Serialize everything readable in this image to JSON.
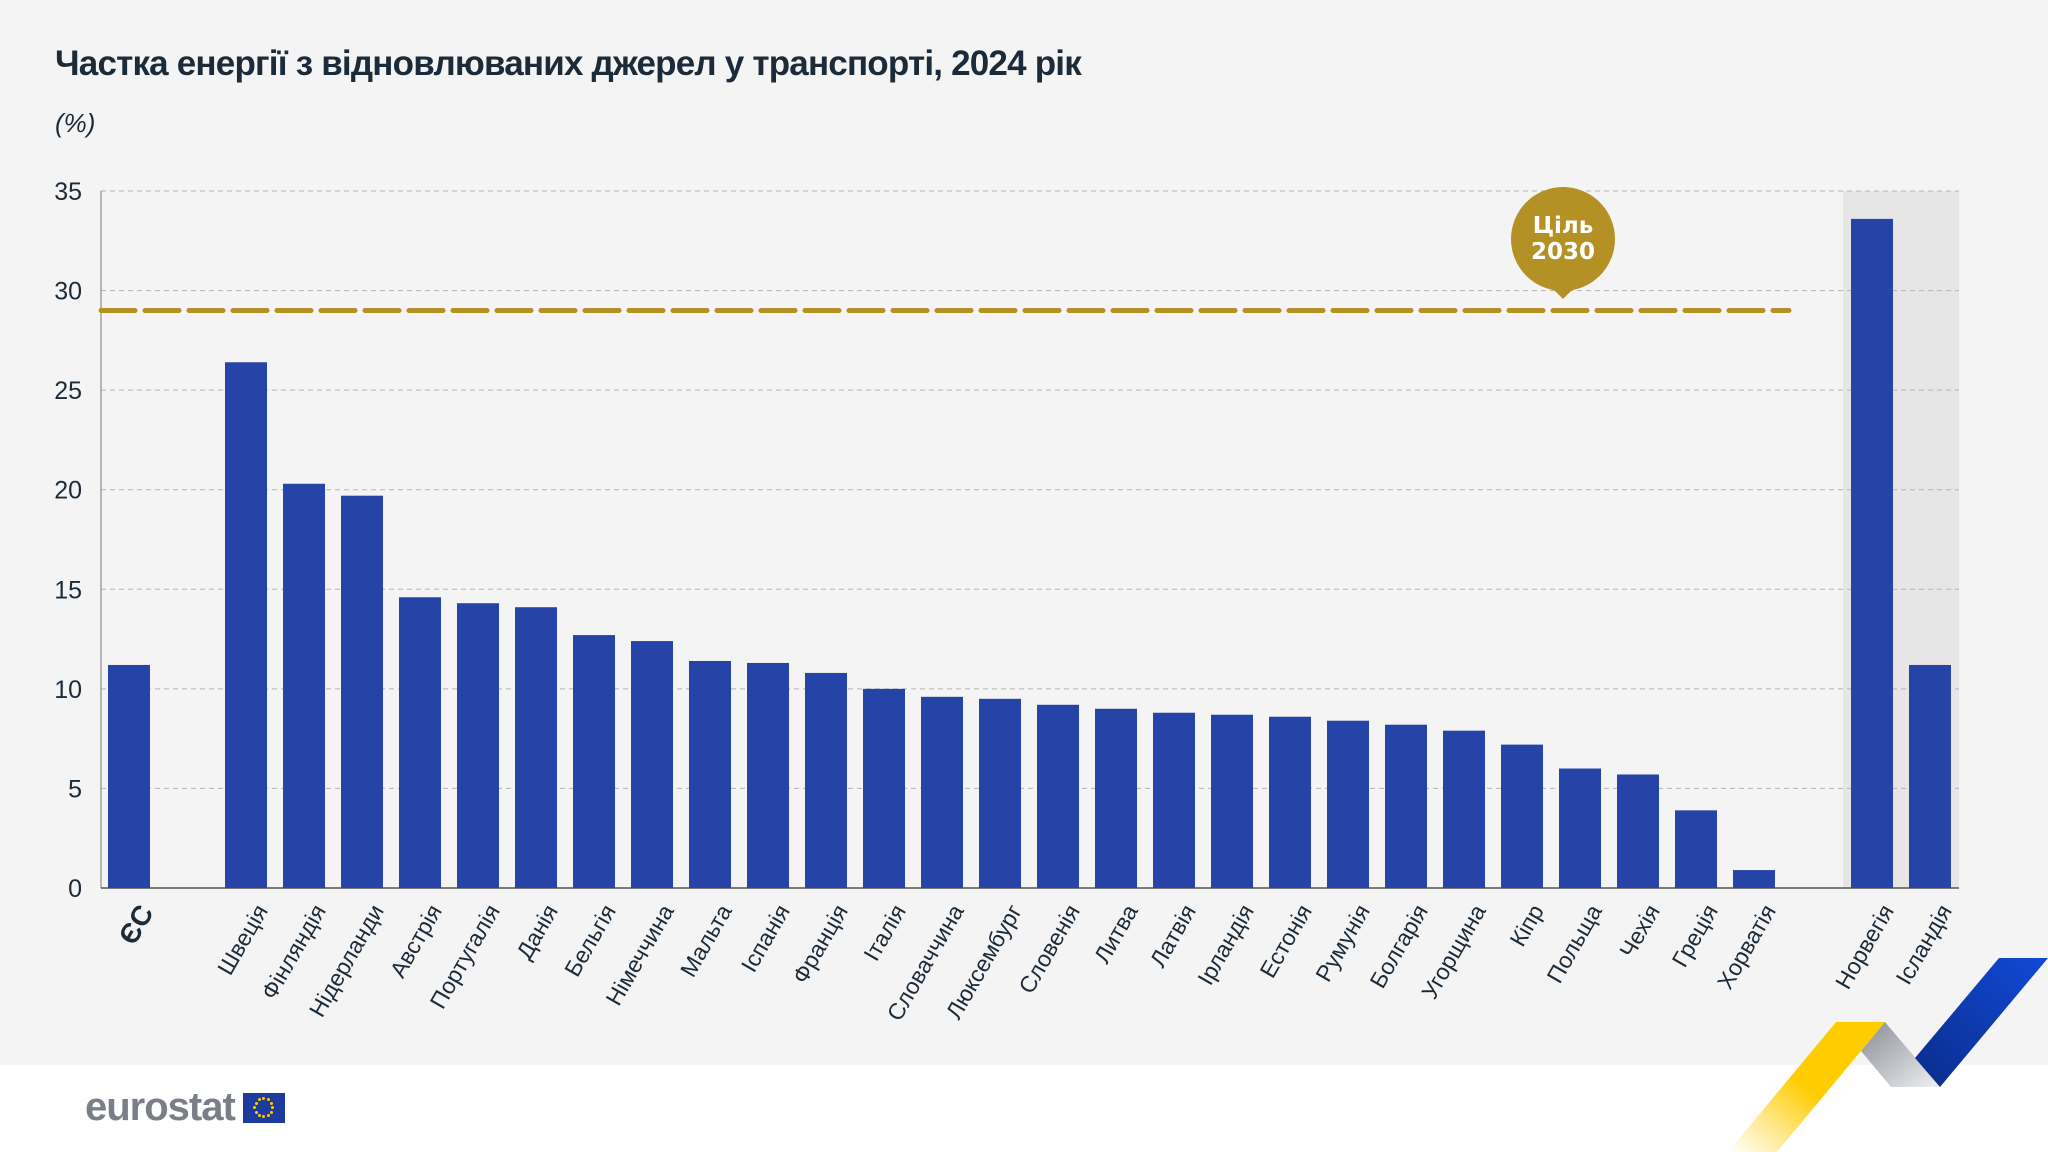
{
  "title": "Частка енергії з відновлюваних джерел у транспорті, 2024 рік",
  "unit": "(%)",
  "logo": "eurostat",
  "colors": {
    "bar": "#2643a7",
    "target": "#b39124",
    "highlight_band": "#e6e6e6",
    "grid": "#b5b5b5",
    "text": "#1c2b39"
  },
  "chart_data": {
    "type": "bar",
    "title": "Частка енергії з відновлюваних джерел у транспорті, 2024 рік",
    "ylabel": "(%)",
    "ylim": [
      0,
      35
    ],
    "yticks": [
      0,
      5,
      10,
      15,
      20,
      25,
      30,
      35
    ],
    "grid": true,
    "categories": [
      "ЄС",
      "Швеція",
      "Фінляндія",
      "Нідерланди",
      "Австрія",
      "Португалія",
      "Данія",
      "Бельгія",
      "Німеччина",
      "Мальта",
      "Іспанія",
      "Франція",
      "Італія",
      "Словаччина",
      "Люксембург",
      "Словенія",
      "Литва",
      "Латвія",
      "Ірландія",
      "Естонія",
      "Румунія",
      "Болгарія",
      "Угорщина",
      "Кіпр",
      "Польща",
      "Чехія",
      "Греція",
      "Хорватія",
      "Норвегія",
      "Ісландія"
    ],
    "values": [
      11.2,
      26.4,
      20.3,
      19.7,
      14.6,
      14.3,
      14.1,
      12.7,
      12.4,
      11.4,
      11.3,
      10.8,
      10.0,
      9.6,
      9.5,
      9.2,
      9.0,
      8.8,
      8.7,
      8.6,
      8.4,
      8.2,
      7.9,
      7.2,
      6.0,
      5.7,
      3.9,
      0.9,
      33.6,
      11.2
    ],
    "groups": {
      "eu": [
        0
      ],
      "member_states": [
        1,
        27
      ],
      "efta_highlighted": [
        28,
        29
      ]
    },
    "target": {
      "value": 29,
      "label_line1": "Ціль",
      "label_line2": "2030"
    }
  }
}
